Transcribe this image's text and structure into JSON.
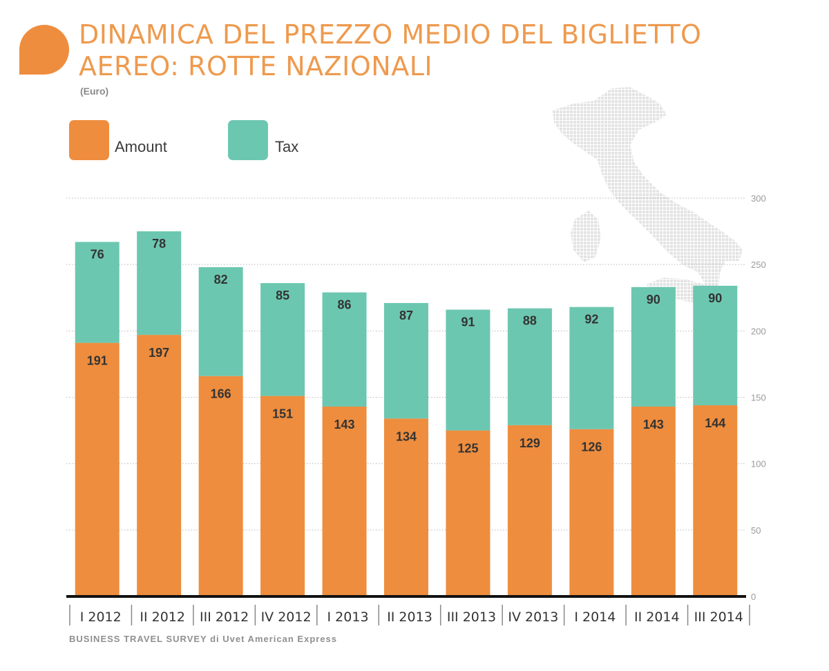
{
  "header": {
    "title_line1": "DINAMICA DEL PREZZO MEDIO DEL BIGLIETTO",
    "title_line2": "AEREO: ROTTE NAZIONALI",
    "unit": "(Euro)"
  },
  "legend": {
    "items": [
      {
        "label": "Amount",
        "color": "#EE8D3E"
      },
      {
        "label": "Tax",
        "color": "#6CC7B0"
      }
    ]
  },
  "footer": {
    "source": "BUSINESS TRAVEL SURVEY di Uvet American Express"
  },
  "chart_data": {
    "type": "bar",
    "stacked": true,
    "categories": [
      "I 2012",
      "II 2012",
      "III 2012",
      "IV 2012",
      "I 2013",
      "II 2013",
      "III 2013",
      "IV 2013",
      "I 2014",
      "II 2014",
      "III 2014"
    ],
    "series": [
      {
        "name": "Amount",
        "color": "#EE8D3E",
        "values": [
          191,
          197,
          166,
          151,
          143,
          134,
          125,
          129,
          126,
          143,
          144
        ]
      },
      {
        "name": "Tax",
        "color": "#6CC7B0",
        "values": [
          76,
          78,
          82,
          85,
          86,
          87,
          91,
          88,
          92,
          90,
          90
        ]
      }
    ],
    "ylim": [
      0,
      300
    ],
    "yticks": [
      0,
      50,
      100,
      150,
      200,
      250,
      300
    ],
    "y_axis_side": "right",
    "grid": true,
    "legend_position": "top-left"
  }
}
